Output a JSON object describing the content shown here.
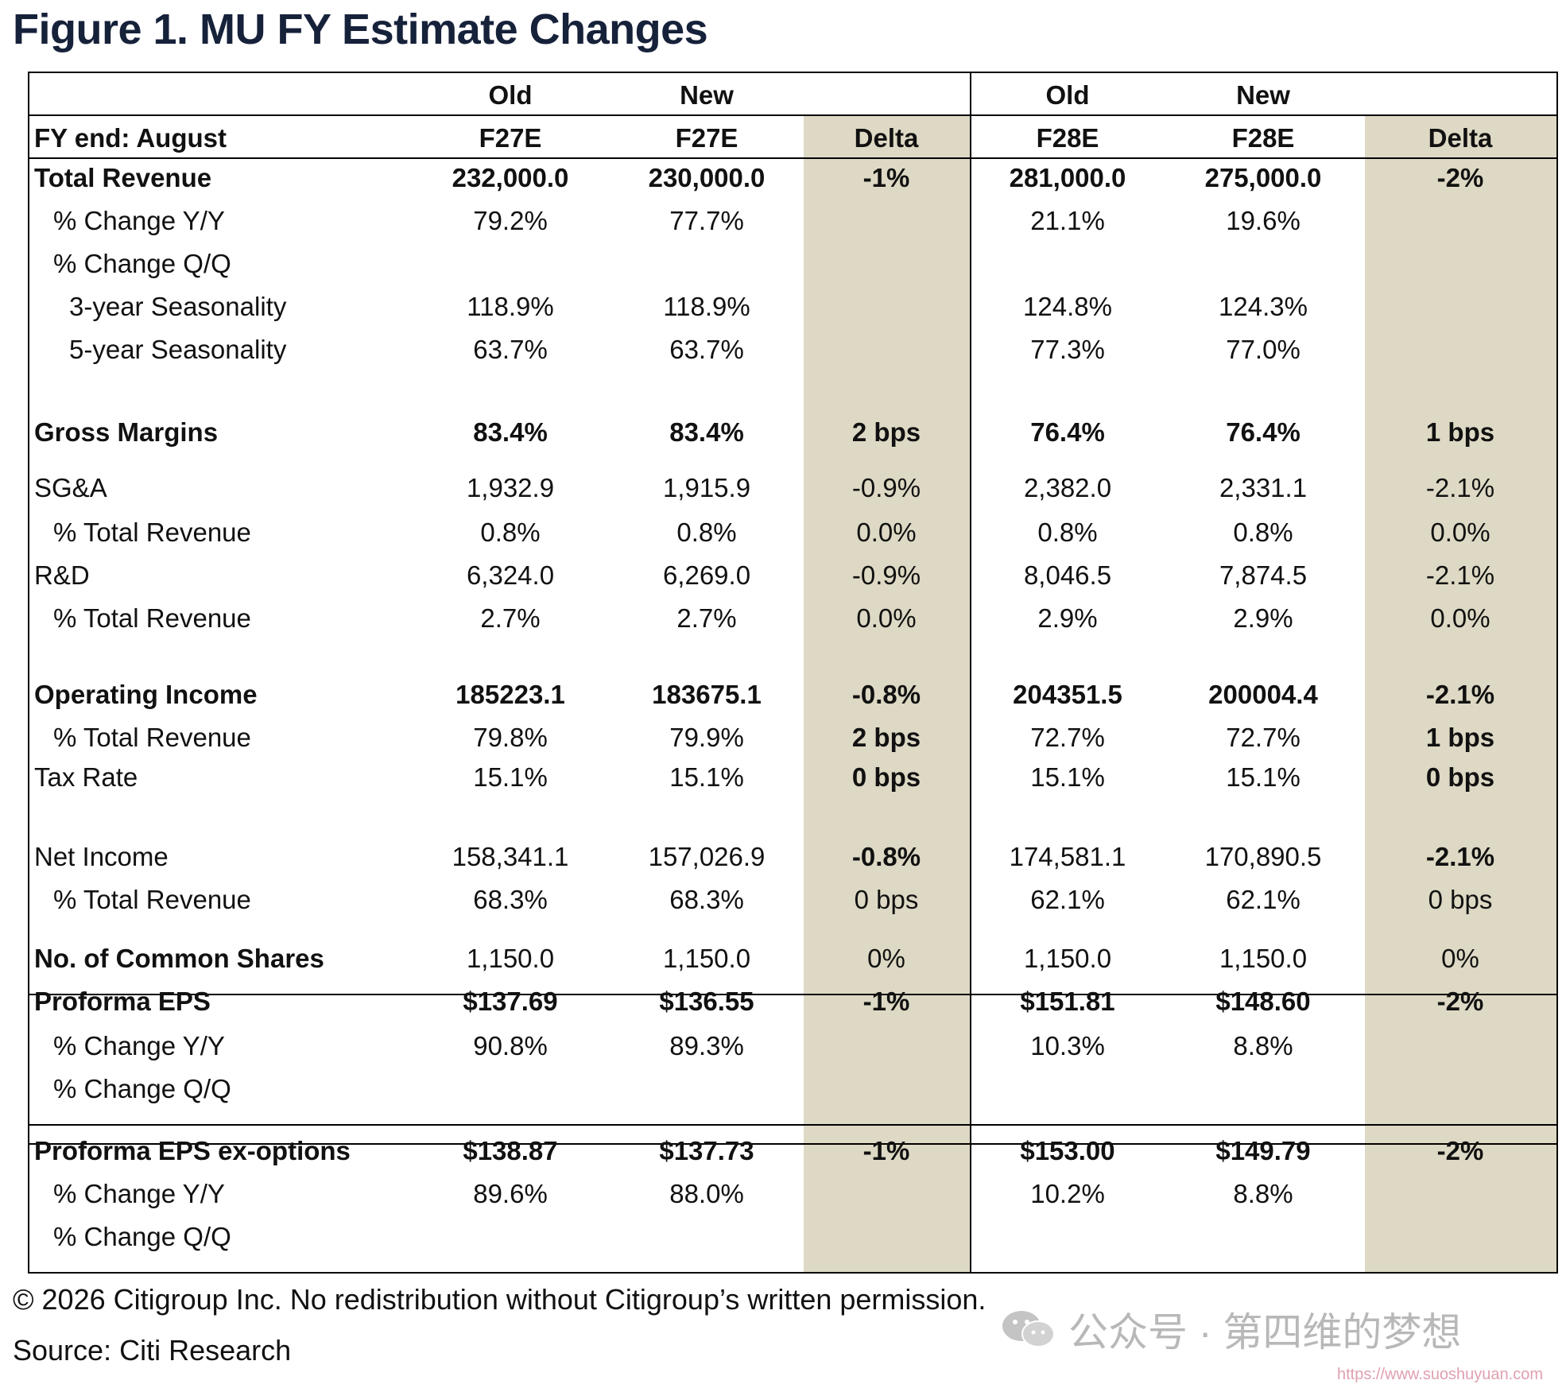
{
  "figure_title": "Figure 1. MU FY Estimate Changes",
  "header": {
    "row1": [
      "Old",
      "New",
      "Old",
      "New"
    ],
    "row2_label": "FY end: August",
    "row2": [
      "F27E",
      "F27E",
      "Delta",
      "F28E",
      "F28E",
      "Delta"
    ]
  },
  "rows": [
    {
      "label": "Total Revenue",
      "bold": true,
      "indent": 0,
      "vals": [
        "232,000.0",
        "230,000.0",
        "-1%",
        "281,000.0",
        "275,000.0",
        "-2%"
      ],
      "bold_deltas": true
    },
    {
      "label": "% Change Y/Y",
      "bold": false,
      "indent": 1,
      "vals": [
        "79.2%",
        "77.7%",
        "",
        "21.1%",
        "19.6%",
        ""
      ]
    },
    {
      "label": "% Change Q/Q",
      "bold": false,
      "indent": 1,
      "vals": [
        "",
        "",
        "",
        "",
        "",
        ""
      ]
    },
    {
      "label": "3-year Seasonality",
      "bold": false,
      "indent": 2,
      "vals": [
        "118.9%",
        "118.9%",
        "",
        "124.8%",
        "124.3%",
        ""
      ]
    },
    {
      "label": "5-year Seasonality",
      "bold": false,
      "indent": 2,
      "vals": [
        "63.7%",
        "63.7%",
        "",
        "77.3%",
        "77.0%",
        ""
      ]
    },
    {
      "label": "Gross Margins",
      "bold": true,
      "indent": 0,
      "vals": [
        "83.4%",
        "83.4%",
        "2 bps",
        "76.4%",
        "76.4%",
        "1 bps"
      ],
      "bold_deltas": true
    },
    {
      "label": "SG&A",
      "bold": false,
      "indent": 0,
      "vals": [
        "1,932.9",
        "1,915.9",
        "-0.9%",
        "2,382.0",
        "2,331.1",
        "-2.1%"
      ]
    },
    {
      "label": "% Total Revenue",
      "bold": false,
      "indent": 1,
      "vals": [
        "0.8%",
        "0.8%",
        "0.0%",
        "0.8%",
        "0.8%",
        "0.0%"
      ]
    },
    {
      "label": "R&D",
      "bold": false,
      "indent": 0,
      "vals": [
        "6,324.0",
        "6,269.0",
        "-0.9%",
        "8,046.5",
        "7,874.5",
        "-2.1%"
      ]
    },
    {
      "label": "% Total Revenue",
      "bold": false,
      "indent": 1,
      "vals": [
        "2.7%",
        "2.7%",
        "0.0%",
        "2.9%",
        "2.9%",
        "0.0%"
      ]
    },
    {
      "label": "Operating Income",
      "bold": true,
      "indent": 0,
      "vals": [
        "185223.1",
        "183675.1",
        "-0.8%",
        "204351.5",
        "200004.4",
        "-2.1%"
      ],
      "bold_deltas": true
    },
    {
      "label": "% Total Revenue",
      "bold": false,
      "indent": 1,
      "vals": [
        "79.8%",
        "79.9%",
        "2 bps",
        "72.7%",
        "72.7%",
        "1 bps"
      ],
      "bold_deltas": true
    },
    {
      "label": "Tax Rate",
      "bold": false,
      "indent": 0,
      "vals": [
        "15.1%",
        "15.1%",
        "0 bps",
        "15.1%",
        "15.1%",
        "0 bps"
      ],
      "bold_deltas": true
    },
    {
      "label": "Net Income",
      "bold": false,
      "indent": 0,
      "vals": [
        "158,341.1",
        "157,026.9",
        "-0.8%",
        "174,581.1",
        "170,890.5",
        "-2.1%"
      ],
      "bold_deltas": true
    },
    {
      "label": "% Total Revenue",
      "bold": false,
      "indent": 1,
      "vals": [
        "68.3%",
        "68.3%",
        "0 bps",
        "62.1%",
        "62.1%",
        "0 bps"
      ]
    },
    {
      "label": "No. of Common Shares",
      "bold": true,
      "indent": 0,
      "label_only_bold": true,
      "vals": [
        "1,150.0",
        "1,150.0",
        "0%",
        "1,150.0",
        "1,150.0",
        "0%"
      ]
    },
    {
      "label": "Proforma EPS",
      "bold": true,
      "indent": 0,
      "vals": [
        "$137.69",
        "$136.55",
        "-1%",
        "$151.81",
        "$148.60",
        "-2%"
      ],
      "bold_deltas": true
    },
    {
      "label": "% Change Y/Y",
      "bold": false,
      "indent": 1,
      "vals": [
        "90.8%",
        "89.3%",
        "",
        "10.3%",
        "8.8%",
        ""
      ]
    },
    {
      "label": "% Change Q/Q",
      "bold": false,
      "indent": 1,
      "vals": [
        "",
        "",
        "",
        "",
        "",
        ""
      ]
    },
    {
      "label": "Proforma EPS ex-options",
      "bold": true,
      "indent": 0,
      "vals": [
        "$138.87",
        "$137.73",
        "-1%",
        "$153.00",
        "$149.79",
        "-2%"
      ],
      "bold_deltas": true
    },
    {
      "label": "% Change Y/Y",
      "bold": false,
      "indent": 1,
      "vals": [
        "89.6%",
        "88.0%",
        "",
        "10.2%",
        "8.8%",
        ""
      ]
    },
    {
      "label": "% Change Q/Q",
      "bold": false,
      "indent": 1,
      "vals": [
        "",
        "",
        "",
        "",
        "",
        ""
      ]
    }
  ],
  "footer": {
    "copyright": "© 2026 Citigroup Inc. No redistribution without Citigroup’s written permission.",
    "source": "Source: Citi Research"
  },
  "watermark": {
    "text": "公众号 · 第四维的梦想",
    "url": "https://www.suoshuyuan.com"
  },
  "colors": {
    "delta_shade": "#ddd9c4",
    "title": "#16213a"
  }
}
